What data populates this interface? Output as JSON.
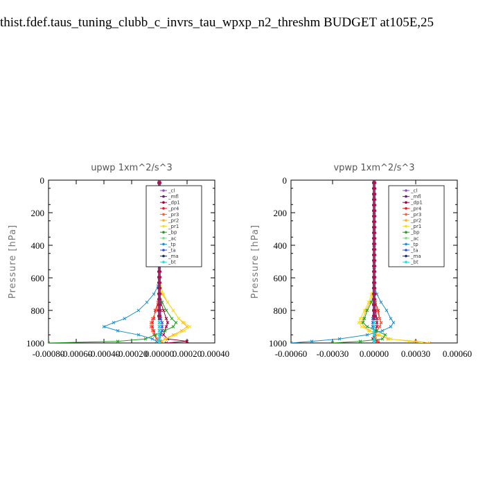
{
  "page": {
    "title": "thist.fdef.taus_tuning_clubb_c_invrs_tau_wpxp_n2_threshm  BUDGET at105E,25"
  },
  "chart_data": [
    {
      "type": "line",
      "title": "upwp   1xm^2/s^3",
      "ylabel": "Pressure [hPa]",
      "xlabel": "",
      "xlim": [
        -0.0008,
        0.0004
      ],
      "ylim": [
        1000,
        0
      ],
      "xticks": [
        "-0.00080",
        "-0.00060",
        "-0.00040",
        "-0.00020",
        "0.00000",
        "0.00020",
        "0.00040"
      ],
      "yticks": [
        "0",
        "200",
        "400",
        "600",
        "800",
        "1000"
      ],
      "legend_position": "top-right",
      "y": [
        0,
        100,
        200,
        300,
        400,
        500,
        550,
        600,
        650,
        700,
        750,
        800,
        850,
        875,
        900,
        925,
        950,
        975,
        990,
        1000
      ],
      "series": [
        {
          "name": "_cl",
          "color": "#8a4fc0",
          "values": [
            0,
            0,
            0,
            0,
            0,
            0,
            0,
            0,
            0,
            0,
            0,
            0,
            0,
            0,
            0,
            0,
            0,
            0,
            0,
            0
          ]
        },
        {
          "name": "_mfl",
          "color": "#6a1b6e",
          "values": [
            0,
            0,
            0,
            0,
            0,
            0,
            0,
            0,
            0,
            0,
            0,
            0,
            0,
            0,
            0,
            0,
            0,
            0,
            0,
            0
          ]
        },
        {
          "name": "_dp1",
          "color": "#a00038",
          "values": [
            0,
            0,
            0,
            0,
            0,
            0,
            0,
            0,
            0,
            0,
            1e-05,
            3e-05,
            5e-05,
            6e-05,
            5e-05,
            4e-05,
            3e-05,
            6e-05,
            0.0002,
            5e-05
          ]
        },
        {
          "name": "_pr4",
          "color": "#e81a1a",
          "values": [
            0,
            0,
            0,
            0,
            0,
            0,
            0,
            0,
            0,
            0,
            -1e-05,
            -3e-05,
            -4e-05,
            -5e-05,
            -5e-05,
            -4e-05,
            -3e-05,
            -2e-05,
            1e-05,
            0
          ]
        },
        {
          "name": "_pr3",
          "color": "#ff5a3c",
          "values": [
            0,
            0,
            0,
            0,
            0,
            0,
            0,
            0,
            0,
            0,
            -1e-05,
            -2e-05,
            -5e-05,
            -6e-05,
            -6e-05,
            -5e-05,
            -4e-05,
            -2e-05,
            2e-05,
            0
          ]
        },
        {
          "name": "_pr2",
          "color": "#ffb020",
          "values": [
            0,
            0,
            0,
            0,
            0,
            0,
            0,
            0,
            0,
            2e-05,
            6e-05,
            0.0001,
            0.00014,
            0.00017,
            0.0002,
            0.00016,
            0.0001,
            4e-05,
            2e-05,
            0
          ]
        },
        {
          "name": "_pr1",
          "color": "#f2e01c",
          "values": [
            0,
            0,
            0,
            0,
            0,
            0,
            0,
            0,
            1e-05,
            3e-05,
            6e-05,
            0.0001,
            0.00014,
            0.00018,
            0.00022,
            0.00018,
            0.00012,
            5e-05,
            2e-05,
            0
          ]
        },
        {
          "name": "_bp",
          "color": "#1f9e1f",
          "values": [
            0,
            0,
            0,
            0,
            0,
            0,
            0,
            0,
            0,
            0,
            2e-05,
            5e-05,
            9e-05,
            0.00012,
            0.0001,
            4e-05,
            -3e-05,
            -0.0001,
            -0.0003,
            -0.0008
          ]
        },
        {
          "name": "_ac",
          "color": "#7ee07e",
          "values": [
            0,
            0,
            0,
            0,
            0,
            0,
            0,
            0,
            0,
            0,
            0,
            0,
            0,
            0,
            0,
            0,
            0,
            0,
            0,
            0
          ]
        },
        {
          "name": "_tp",
          "color": "#1f8fc8",
          "values": [
            0,
            0,
            0,
            0,
            0,
            0,
            0,
            0,
            -1e-05,
            -4e-05,
            -9e-05,
            -0.00015,
            -0.00025,
            -0.00033,
            -0.0004,
            -0.0003,
            -0.00015,
            -5e-05,
            -2e-05,
            0
          ]
        },
        {
          "name": "_ta",
          "color": "#3050d8",
          "values": [
            0,
            0,
            0,
            0,
            0,
            0,
            0,
            0,
            0,
            0,
            0,
            1e-05,
            1e-05,
            2e-05,
            2e-05,
            2e-05,
            1e-05,
            0,
            0,
            0
          ]
        },
        {
          "name": "_ma",
          "color": "#202b6e",
          "values": [
            0,
            0,
            0,
            0,
            0,
            0,
            0,
            0,
            0,
            0,
            0,
            0,
            0,
            0,
            0,
            0,
            0,
            0,
            0,
            0
          ]
        },
        {
          "name": "_bt",
          "color": "#20e0e0",
          "values": [
            0,
            0,
            0,
            0,
            0,
            0,
            0,
            0,
            0,
            0,
            0,
            0,
            0,
            0,
            0,
            0,
            0,
            0,
            0,
            0
          ]
        }
      ]
    },
    {
      "type": "line",
      "title": "vpwp   1xm^2/s^3",
      "ylabel": "Pressure [hPa]",
      "xlabel": "",
      "xlim": [
        -0.0006,
        0.0006
      ],
      "ylim": [
        1000,
        0
      ],
      "xticks": [
        "-0.00060",
        "-0.00030",
        "0.00000",
        "0.00030",
        "0.00060"
      ],
      "yticks": [
        "0",
        "200",
        "400",
        "600",
        "800",
        "1000"
      ],
      "legend_position": "top-right",
      "y": [
        0,
        100,
        200,
        300,
        400,
        500,
        550,
        600,
        650,
        700,
        750,
        800,
        850,
        875,
        900,
        925,
        950,
        975,
        990,
        1000
      ],
      "series": [
        {
          "name": "_cl",
          "color": "#8a4fc0",
          "values": [
            0,
            0,
            0,
            0,
            0,
            0,
            0,
            0,
            0,
            0,
            0,
            0,
            0,
            0,
            0,
            0,
            0,
            0,
            0,
            0
          ]
        },
        {
          "name": "_mfl",
          "color": "#6a1b6e",
          "values": [
            0,
            0,
            0,
            0,
            0,
            0,
            0,
            0,
            0,
            0,
            0,
            0,
            0,
            0,
            0,
            0,
            0,
            0,
            0,
            0
          ]
        },
        {
          "name": "_dp1",
          "color": "#a00038",
          "values": [
            0,
            0,
            0,
            0,
            0,
            0,
            0,
            0,
            0,
            0,
            0,
            1e-05,
            2e-05,
            2e-05,
            2e-05,
            1e-05,
            0,
            -1e-05,
            2e-05,
            3e-05
          ]
        },
        {
          "name": "_pr4",
          "color": "#e81a1a",
          "values": [
            0,
            0,
            0,
            0,
            0,
            0,
            0,
            0,
            0,
            0,
            1e-05,
            3e-05,
            4e-05,
            5e-05,
            4e-05,
            2e-05,
            1e-05,
            0,
            2e-05,
            0
          ]
        },
        {
          "name": "_pr3",
          "color": "#ff5a3c",
          "values": [
            0,
            0,
            0,
            0,
            0,
            0,
            0,
            0,
            0,
            0,
            1e-05,
            2e-05,
            4e-05,
            5e-05,
            4e-05,
            2e-05,
            1e-05,
            1e-05,
            3e-05,
            0
          ]
        },
        {
          "name": "_pr2",
          "color": "#ffb020",
          "values": [
            0,
            0,
            0,
            0,
            0,
            0,
            0,
            0,
            0,
            -1e-05,
            -3e-05,
            -6e-05,
            -8e-05,
            -9e-05,
            -7e-05,
            -3e-05,
            3e-05,
            0.0001,
            0.0003,
            0.0004
          ]
        },
        {
          "name": "_pr1",
          "color": "#f2e01c",
          "values": [
            0,
            0,
            0,
            0,
            0,
            0,
            0,
            0,
            0,
            -2e-05,
            -4e-05,
            -7e-05,
            -0.0001,
            -0.00011,
            -9e-05,
            -4e-05,
            4e-05,
            0.00012,
            0.00025,
            0.00035
          ]
        },
        {
          "name": "_bp",
          "color": "#1f9e1f",
          "values": [
            0,
            0,
            0,
            0,
            0,
            0,
            0,
            0,
            0,
            0,
            -2e-05,
            -5e-05,
            -7e-05,
            -8e-05,
            -5e-05,
            2e-05,
            8e-05,
            6e-05,
            -0.0001,
            -0.0003
          ]
        },
        {
          "name": "_ac",
          "color": "#7ee07e",
          "values": [
            0,
            0,
            0,
            0,
            0,
            0,
            0,
            0,
            0,
            0,
            0,
            0,
            0,
            0,
            0,
            0,
            0,
            0,
            0,
            0
          ]
        },
        {
          "name": "_tp",
          "color": "#1f8fc8",
          "values": [
            0,
            0,
            0,
            0,
            0,
            0,
            0,
            0,
            0,
            2e-05,
            5e-05,
            9e-05,
            0.00012,
            0.00014,
            0.00012,
            6e-05,
            -5e-05,
            -0.00025,
            -0.00045,
            -0.0006
          ]
        },
        {
          "name": "_ta",
          "color": "#3050d8",
          "values": [
            0,
            0,
            0,
            0,
            0,
            0,
            0,
            0,
            0,
            0,
            0,
            0,
            -1e-05,
            -1e-05,
            -1e-05,
            0,
            0,
            0,
            0,
            0
          ]
        },
        {
          "name": "_ma",
          "color": "#202b6e",
          "values": [
            0,
            0,
            0,
            0,
            0,
            0,
            0,
            0,
            0,
            0,
            0,
            0,
            0,
            0,
            0,
            0,
            0,
            0,
            0,
            0
          ]
        },
        {
          "name": "_bt",
          "color": "#20e0e0",
          "values": [
            0,
            0,
            0,
            0,
            0,
            0,
            0,
            0,
            0,
            0,
            0,
            0,
            0,
            0,
            0,
            0,
            0,
            0,
            0,
            0
          ]
        }
      ]
    }
  ]
}
